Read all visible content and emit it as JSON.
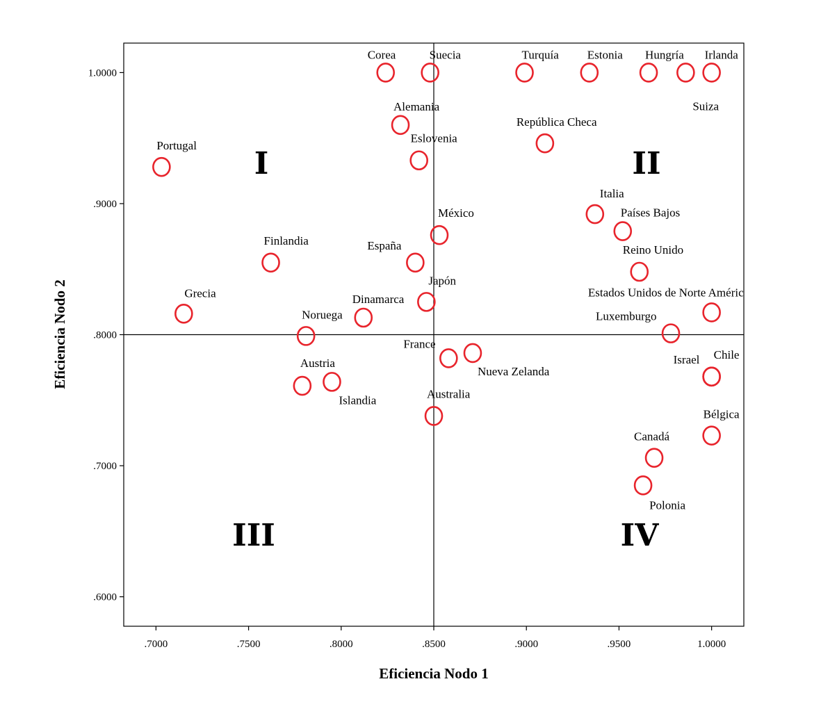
{
  "chart_data": {
    "type": "scatter",
    "xlabel": "Eficiencia Nodo 1",
    "ylabel": "Eficiencia Nodo 2",
    "xlim": [
      0.6826,
      1.0174
    ],
    "ylim": [
      0.5775,
      1.0225
    ],
    "x_ticks": [
      ".7000",
      ".7500",
      ".8000",
      ".8500",
      ".9000",
      ".9500",
      "1.0000"
    ],
    "x_tick_values": [
      0.7,
      0.75,
      0.8,
      0.85,
      0.9,
      0.95,
      1.0
    ],
    "y_ticks": [
      "1.0000",
      ".9000",
      ".8000",
      ".7000",
      ".6000"
    ],
    "y_tick_values": [
      1.0,
      0.9,
      0.8,
      0.7,
      0.6
    ],
    "reference_lines": {
      "x": 0.85,
      "y": 0.8
    },
    "grid": false,
    "marker_color": "#e8242c",
    "quadrants": [
      "I",
      "II",
      "III",
      "IV"
    ],
    "points": [
      {
        "label": "Corea",
        "x": 0.824,
        "y": 1.0
      },
      {
        "label": "Suecia",
        "x": 0.848,
        "y": 1.0
      },
      {
        "label": "Turquía",
        "x": 0.899,
        "y": 1.0
      },
      {
        "label": "Estonia",
        "x": 0.934,
        "y": 1.0
      },
      {
        "label": "Hungría",
        "x": 0.966,
        "y": 1.0
      },
      {
        "label": "Suiza",
        "x": 0.986,
        "y": 1.0
      },
      {
        "label": "Irlanda",
        "x": 1.0,
        "y": 1.0
      },
      {
        "label": "Alemania",
        "x": 0.832,
        "y": 0.96
      },
      {
        "label": "República Checa",
        "x": 0.91,
        "y": 0.946
      },
      {
        "label": "Portugal",
        "x": 0.703,
        "y": 0.928
      },
      {
        "label": "Eslovenia",
        "x": 0.842,
        "y": 0.933
      },
      {
        "label": "Italia",
        "x": 0.937,
        "y": 0.892
      },
      {
        "label": "Países Bajos",
        "x": 0.952,
        "y": 0.879
      },
      {
        "label": "México",
        "x": 0.853,
        "y": 0.876
      },
      {
        "label": "España",
        "x": 0.84,
        "y": 0.855
      },
      {
        "label": "Finlandia",
        "x": 0.762,
        "y": 0.855
      },
      {
        "label": "Reino Unido",
        "x": 0.961,
        "y": 0.848
      },
      {
        "label": "Japón",
        "x": 0.846,
        "y": 0.825
      },
      {
        "label": "Estados Unidos de Norte Améric",
        "x": 1.0,
        "y": 0.817
      },
      {
        "label": "Grecia",
        "x": 0.715,
        "y": 0.816
      },
      {
        "label": "Dinamarca",
        "x": 0.812,
        "y": 0.813
      },
      {
        "label": "Luxemburgo",
        "x": 0.978,
        "y": 0.801
      },
      {
        "label": "Noruega",
        "x": 0.781,
        "y": 0.799
      },
      {
        "label": "Nueva Zelanda",
        "x": 0.871,
        "y": 0.786
      },
      {
        "label": "France",
        "x": 0.858,
        "y": 0.782
      },
      {
        "label": "Chile",
        "x": 1.0,
        "y": 0.768
      },
      {
        "label": "Israel",
        "x": 1.0,
        "y": 0.768
      },
      {
        "label": "Islandia",
        "x": 0.795,
        "y": 0.764
      },
      {
        "label": "Austria",
        "x": 0.779,
        "y": 0.761
      },
      {
        "label": "Australia",
        "x": 0.85,
        "y": 0.738
      },
      {
        "label": "Bélgica",
        "x": 1.0,
        "y": 0.723
      },
      {
        "label": "Canadá",
        "x": 0.969,
        "y": 0.706
      },
      {
        "label": "Polonia",
        "x": 0.963,
        "y": 0.685
      }
    ]
  }
}
